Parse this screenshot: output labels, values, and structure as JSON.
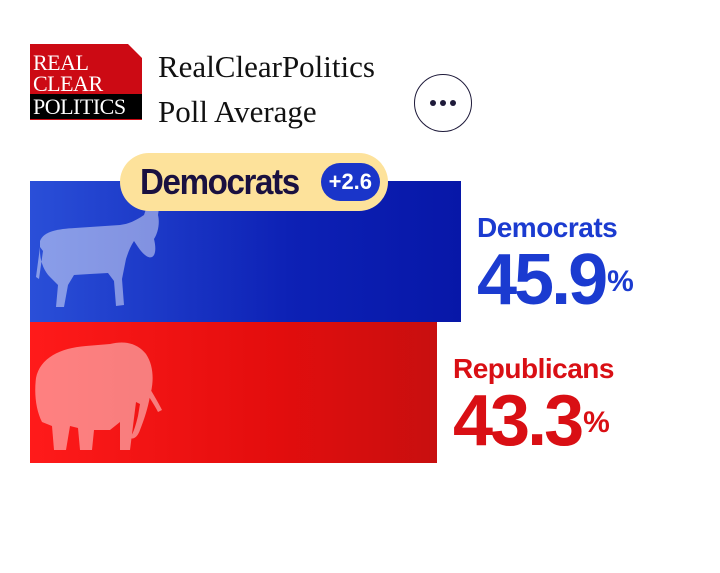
{
  "logo": {
    "line1": "REAL",
    "line2": "CLEAR",
    "line3": "POLITICS"
  },
  "source": {
    "line1": "RealClearPolitics",
    "line2": "Poll Average"
  },
  "leader": {
    "name": "Democrats",
    "margin": "+2.6"
  },
  "colors": {
    "dem": "#1b3bd0",
    "rep": "#d90f14",
    "badge": "#fde29b"
  },
  "chart_data": {
    "type": "bar",
    "orientation": "horizontal",
    "categories": [
      "Democrats",
      "Republicans"
    ],
    "values": [
      45.9,
      43.3
    ],
    "value_labels": [
      "45.9",
      "43.3"
    ],
    "unit": "%",
    "title": "",
    "xlabel": "",
    "ylabel": ""
  }
}
